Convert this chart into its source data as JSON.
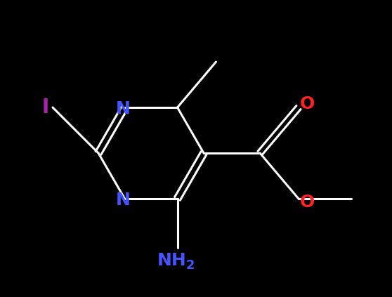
{
  "background_color": "#000000",
  "bond_color": "#ffffff",
  "bond_lw": 2.2,
  "figsize": [
    5.58,
    4.23
  ],
  "dpi": 100,
  "colors": {
    "I": "#aa22aa",
    "N": "#4455ff",
    "O": "#ff2222",
    "bond": "#ffffff"
  },
  "label_fontsize": 18,
  "sub_fontsize": 13
}
